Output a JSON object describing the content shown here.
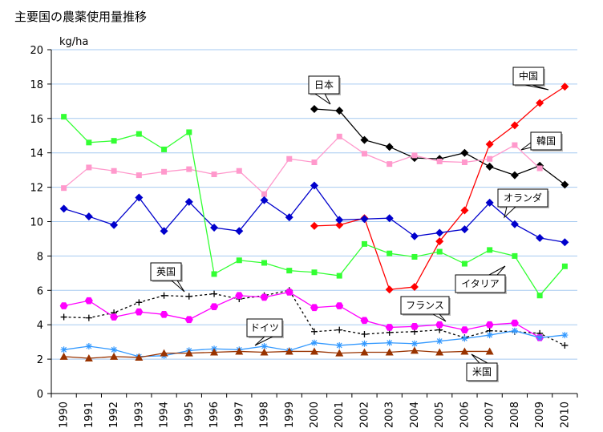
{
  "chart_data": {
    "type": "line",
    "title": "主要国の農薬使用量推移",
    "ylabel": "kg/ha",
    "ylim": [
      0,
      20
    ],
    "yticks": [
      0,
      2,
      4,
      6,
      8,
      10,
      12,
      14,
      16,
      18,
      20
    ],
    "x": [
      "1990",
      "1991",
      "1992",
      "1993",
      "1994",
      "1995",
      "1996",
      "1997",
      "1998",
      "1999",
      "2000",
      "2001",
      "2002",
      "2003",
      "2004",
      "2005",
      "2006",
      "2007",
      "2008",
      "2009",
      "2010"
    ],
    "grid": true,
    "series": [
      {
        "name": "日本",
        "color": "#000000",
        "marker": "diamond",
        "dash": false,
        "values": [
          null,
          null,
          null,
          null,
          null,
          null,
          null,
          null,
          null,
          null,
          16.55,
          16.45,
          14.75,
          14.35,
          13.7,
          13.65,
          14.0,
          13.2,
          12.7,
          13.25,
          12.15
        ]
      },
      {
        "name": "中国",
        "color": "#ff0000",
        "marker": "diamond",
        "dash": false,
        "values": [
          null,
          null,
          null,
          null,
          null,
          null,
          null,
          null,
          null,
          null,
          9.75,
          9.8,
          10.2,
          6.05,
          6.2,
          8.85,
          10.65,
          14.5,
          15.6,
          16.9,
          17.85
        ]
      },
      {
        "name": "韓国",
        "color": "#ff99cc",
        "marker": "square",
        "dash": false,
        "values": [
          11.95,
          13.15,
          12.95,
          12.7,
          12.9,
          13.05,
          12.75,
          12.95,
          11.6,
          13.65,
          13.45,
          14.95,
          13.95,
          13.35,
          13.85,
          13.5,
          13.45,
          13.65,
          14.45,
          13.1,
          null
        ]
      },
      {
        "name": "オランダ",
        "color": "#0000cc",
        "marker": "diamond",
        "dash": false,
        "values": [
          10.75,
          10.3,
          9.8,
          11.4,
          9.45,
          11.15,
          9.65,
          9.45,
          11.25,
          10.25,
          12.1,
          10.1,
          10.15,
          10.2,
          9.15,
          9.35,
          9.55,
          11.1,
          9.85,
          9.05,
          8.8
        ]
      },
      {
        "name": "イタリア",
        "color": "#33ff33",
        "marker": "square",
        "dash": false,
        "values": [
          16.1,
          14.6,
          14.7,
          15.1,
          14.2,
          15.2,
          6.95,
          7.75,
          7.6,
          7.15,
          7.05,
          6.85,
          8.7,
          8.15,
          7.95,
          8.25,
          7.55,
          8.35,
          8.0,
          5.7,
          7.4
        ]
      },
      {
        "name": "英国",
        "color": "#000000",
        "marker": "plus",
        "dash": true,
        "values": [
          4.45,
          4.4,
          4.7,
          5.3,
          5.7,
          5.65,
          5.8,
          5.5,
          5.7,
          6.0,
          3.6,
          3.7,
          3.45,
          3.55,
          3.6,
          3.7,
          3.25,
          3.65,
          3.6,
          3.5,
          2.8
        ]
      },
      {
        "name": "フランス",
        "color": "#ff00ff",
        "marker": "hexagon",
        "dash": false,
        "values": [
          5.1,
          5.4,
          4.45,
          4.75,
          4.6,
          4.3,
          5.05,
          5.7,
          5.6,
          5.9,
          5.0,
          5.1,
          4.25,
          3.85,
          3.9,
          4.0,
          3.7,
          4.0,
          4.1,
          3.25,
          null
        ]
      },
      {
        "name": "ドイツ",
        "color": "#3399ff",
        "marker": "star",
        "dash": false,
        "values": [
          2.55,
          2.75,
          2.55,
          2.15,
          2.2,
          2.5,
          2.6,
          2.55,
          2.75,
          2.5,
          2.95,
          2.8,
          2.9,
          2.95,
          2.9,
          3.05,
          3.2,
          3.4,
          3.65,
          3.25,
          3.4
        ]
      },
      {
        "name": "米国",
        "color": "#993300",
        "marker": "triangle",
        "dash": false,
        "values": [
          2.15,
          2.05,
          2.15,
          2.1,
          2.35,
          2.35,
          2.4,
          2.45,
          2.4,
          2.45,
          2.45,
          2.35,
          2.4,
          2.4,
          2.5,
          2.4,
          2.45,
          2.45,
          null,
          null,
          null
        ]
      }
    ]
  }
}
